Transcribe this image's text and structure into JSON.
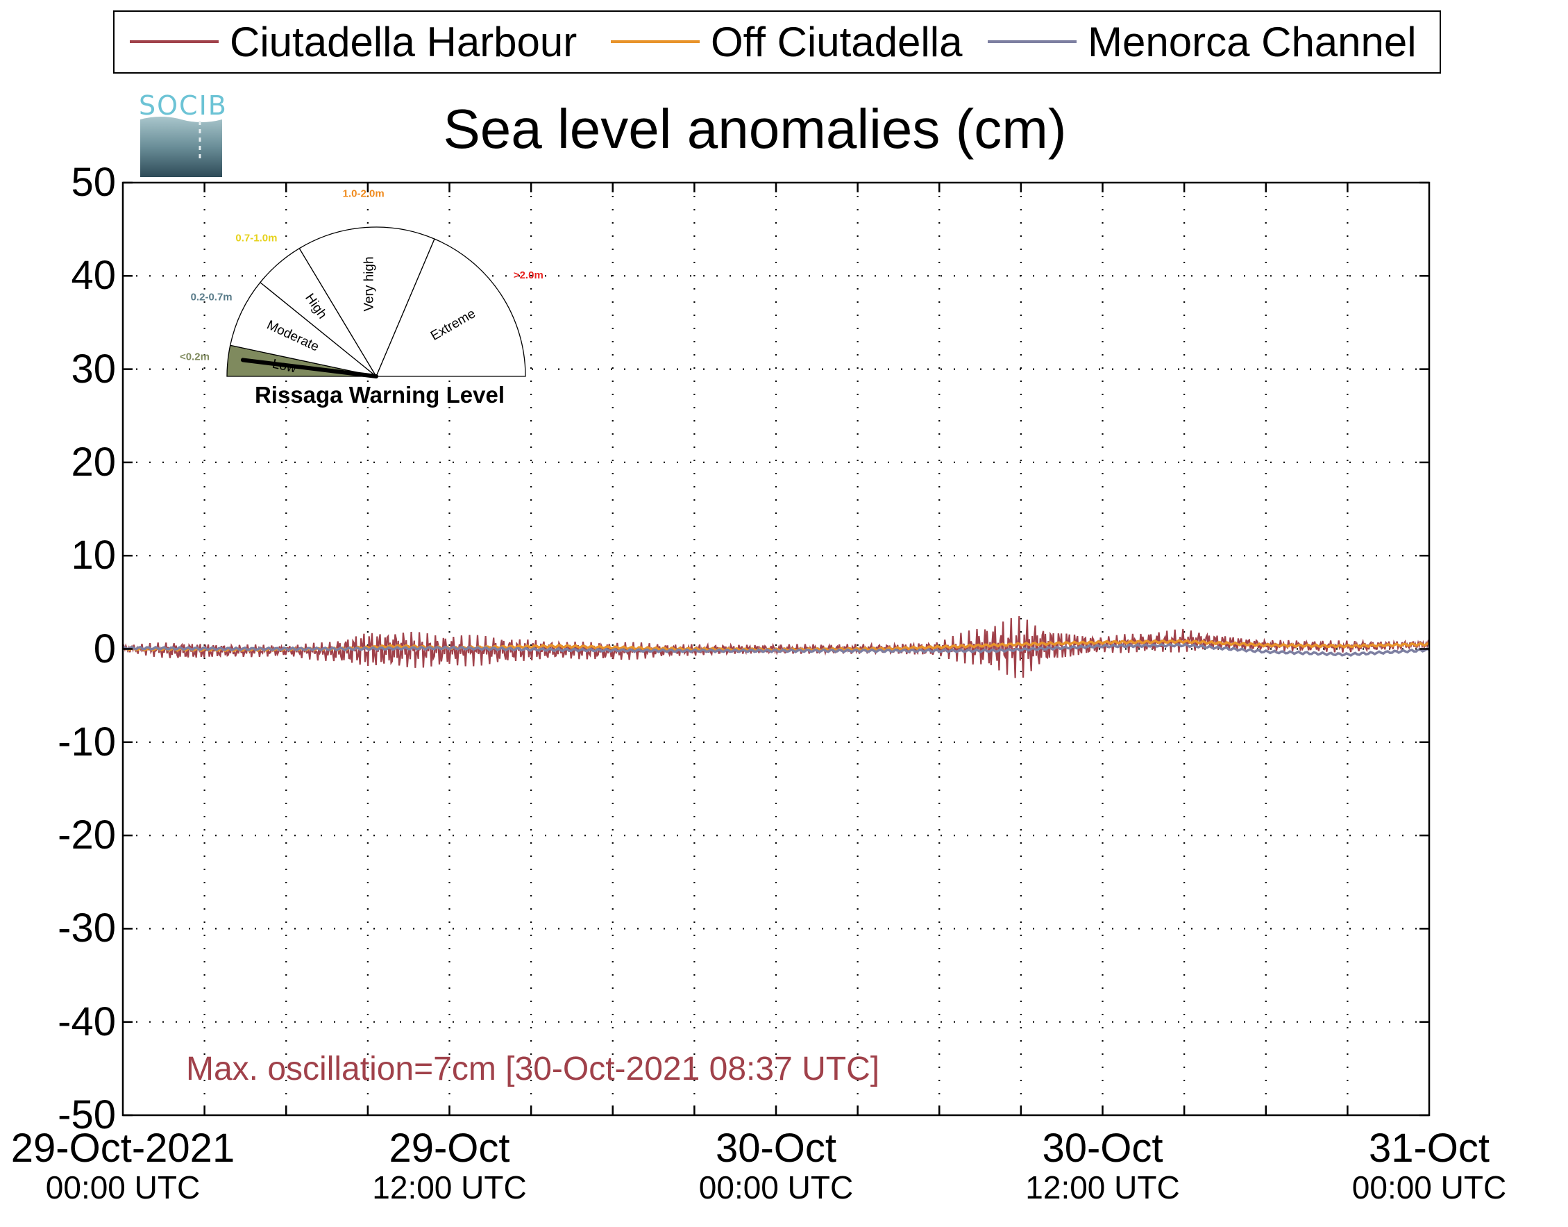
{
  "legend": {
    "items": [
      {
        "label": "Ciutadella Harbour",
        "color": "#a0414a"
      },
      {
        "label": "Off Ciutadella",
        "color": "#e8932a"
      },
      {
        "label": "Menorca Channel",
        "color": "#7d7fa1"
      }
    ]
  },
  "logo": {
    "text": "SOCIB"
  },
  "gauge": {
    "title": "Rissaga Warning Level",
    "sectors": [
      {
        "name": "Low",
        "range": "<0.2m",
        "range_color": "#7f8a5e",
        "active": true
      },
      {
        "name": "Moderate",
        "range": "0.2-0.7m",
        "range_color": "#5a7c8a",
        "active": false
      },
      {
        "name": "High",
        "range": "0.7-1.0m",
        "range_color": "#e6d21d",
        "active": false
      },
      {
        "name": "Very high",
        "range": "1.0-2.0m",
        "range_color": "#ef8a1d",
        "active": false
      },
      {
        "name": "Extreme",
        "range": ">2.0m",
        "range_color": "#e8221f",
        "active": false
      }
    ],
    "active_fill": "#7f8a5e"
  },
  "annotation": "Max. oscillation=7cm [30-Oct-2021 08:37 UTC]",
  "chart_data": {
    "type": "line",
    "title": "Sea level anomalies (cm)",
    "xlabel": "",
    "ylabel": "",
    "ylim": [
      -50,
      50
    ],
    "yticks": [
      "50",
      "40",
      "30",
      "20",
      "10",
      "0",
      "-10",
      "-20",
      "-30",
      "-40",
      "-50"
    ],
    "xlim_hours": [
      0,
      48
    ],
    "xtick_labels": [
      {
        "date": "29-Oct-2021",
        "time": "00:00 UTC"
      },
      {
        "date": "29-Oct",
        "time": "12:00 UTC"
      },
      {
        "date": "30-Oct",
        "time": "00:00 UTC"
      },
      {
        "date": "30-Oct",
        "time": "12:00 UTC"
      },
      {
        "date": "31-Oct",
        "time": "00:00 UTC"
      }
    ],
    "grid": true,
    "legend_position": "top",
    "series": [
      {
        "name": "Ciutadella Harbour",
        "envelope": [
          {
            "x": 0,
            "lo": -0.3,
            "hi": 0.4
          },
          {
            "x": 2,
            "lo": -1.3,
            "hi": 0.9
          },
          {
            "x": 4,
            "lo": -1.0,
            "hi": 0.6
          },
          {
            "x": 6,
            "lo": -0.8,
            "hi": 0.4
          },
          {
            "x": 7.5,
            "lo": -1.4,
            "hi": 0.8
          },
          {
            "x": 9,
            "lo": -2.3,
            "hi": 2.2
          },
          {
            "x": 10,
            "lo": -2.4,
            "hi": 2.3
          },
          {
            "x": 12,
            "lo": -2.0,
            "hi": 1.6
          },
          {
            "x": 14,
            "lo": -1.7,
            "hi": 1.4
          },
          {
            "x": 16,
            "lo": -1.2,
            "hi": 1.0
          },
          {
            "x": 18,
            "lo": -1.3,
            "hi": 0.8
          },
          {
            "x": 20,
            "lo": -0.9,
            "hi": 0.6
          },
          {
            "x": 24,
            "lo": -0.5,
            "hi": 0.5
          },
          {
            "x": 28,
            "lo": -0.6,
            "hi": 0.6
          },
          {
            "x": 30,
            "lo": -0.9,
            "hi": 0.9
          },
          {
            "x": 31.5,
            "lo": -2.0,
            "hi": 2.5
          },
          {
            "x": 33,
            "lo": -3.5,
            "hi": 3.8
          },
          {
            "x": 34,
            "lo": -1.8,
            "hi": 2.5
          },
          {
            "x": 36,
            "lo": -0.5,
            "hi": 1.4
          },
          {
            "x": 39,
            "lo": -0.4,
            "hi": 2.2
          },
          {
            "x": 42,
            "lo": -0.2,
            "hi": 1.0
          },
          {
            "x": 45,
            "lo": -0.4,
            "hi": 0.9
          },
          {
            "x": 48,
            "lo": 0.1,
            "hi": 0.9
          }
        ]
      },
      {
        "name": "Off Ciutadella",
        "points": [
          {
            "x": 0,
            "y": 0.0
          },
          {
            "x": 4,
            "y": -0.1
          },
          {
            "x": 8,
            "y": 0.0
          },
          {
            "x": 10,
            "y": 0.3
          },
          {
            "x": 12,
            "y": 0.1
          },
          {
            "x": 16,
            "y": 0.3
          },
          {
            "x": 20,
            "y": 0.0
          },
          {
            "x": 24,
            "y": -0.1
          },
          {
            "x": 28,
            "y": 0.0
          },
          {
            "x": 31,
            "y": 0.3
          },
          {
            "x": 33,
            "y": 0.5
          },
          {
            "x": 36,
            "y": 0.7
          },
          {
            "x": 39,
            "y": 0.8
          },
          {
            "x": 42,
            "y": 0.4
          },
          {
            "x": 45,
            "y": 0.3
          },
          {
            "x": 48,
            "y": 0.5
          }
        ]
      },
      {
        "name": "Menorca Channel",
        "points": [
          {
            "x": 0,
            "y": 0.1
          },
          {
            "x": 4,
            "y": 0.0
          },
          {
            "x": 8,
            "y": 0.0
          },
          {
            "x": 12,
            "y": 0.1
          },
          {
            "x": 16,
            "y": -0.1
          },
          {
            "x": 20,
            "y": -0.2
          },
          {
            "x": 24,
            "y": -0.2
          },
          {
            "x": 28,
            "y": -0.2
          },
          {
            "x": 32,
            "y": -0.2
          },
          {
            "x": 36,
            "y": 0.3
          },
          {
            "x": 39,
            "y": 0.4
          },
          {
            "x": 42,
            "y": -0.3
          },
          {
            "x": 45,
            "y": -0.6
          },
          {
            "x": 48,
            "y": -0.1
          }
        ]
      }
    ]
  }
}
